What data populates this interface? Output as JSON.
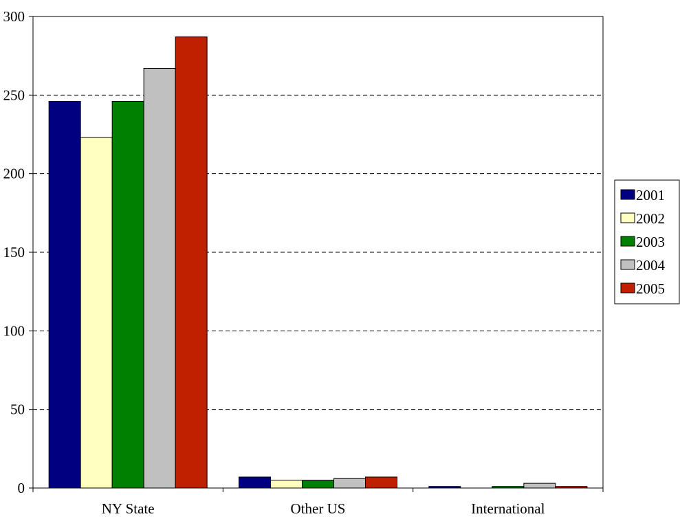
{
  "chart_data": {
    "type": "bar",
    "title": "",
    "xlabel": "",
    "ylabel": "",
    "categories": [
      "NY State",
      "Other US",
      "International"
    ],
    "series": [
      {
        "name": "2001",
        "color": "#000080",
        "values": [
          246,
          7,
          1
        ]
      },
      {
        "name": "2002",
        "color": "#FFFFC0",
        "values": [
          223,
          5,
          0
        ]
      },
      {
        "name": "2003",
        "color": "#008000",
        "values": [
          246,
          5,
          1
        ]
      },
      {
        "name": "2004",
        "color": "#C0C0C0",
        "values": [
          267,
          6,
          3
        ]
      },
      {
        "name": "2005",
        "color": "#C02000",
        "values": [
          287,
          7,
          1
        ]
      }
    ],
    "ylim": [
      0,
      300
    ],
    "yticks": [
      "0",
      "50",
      "100",
      "150",
      "200",
      "250",
      "300"
    ],
    "grid": "horizontal dashed",
    "legend_position": "right"
  }
}
